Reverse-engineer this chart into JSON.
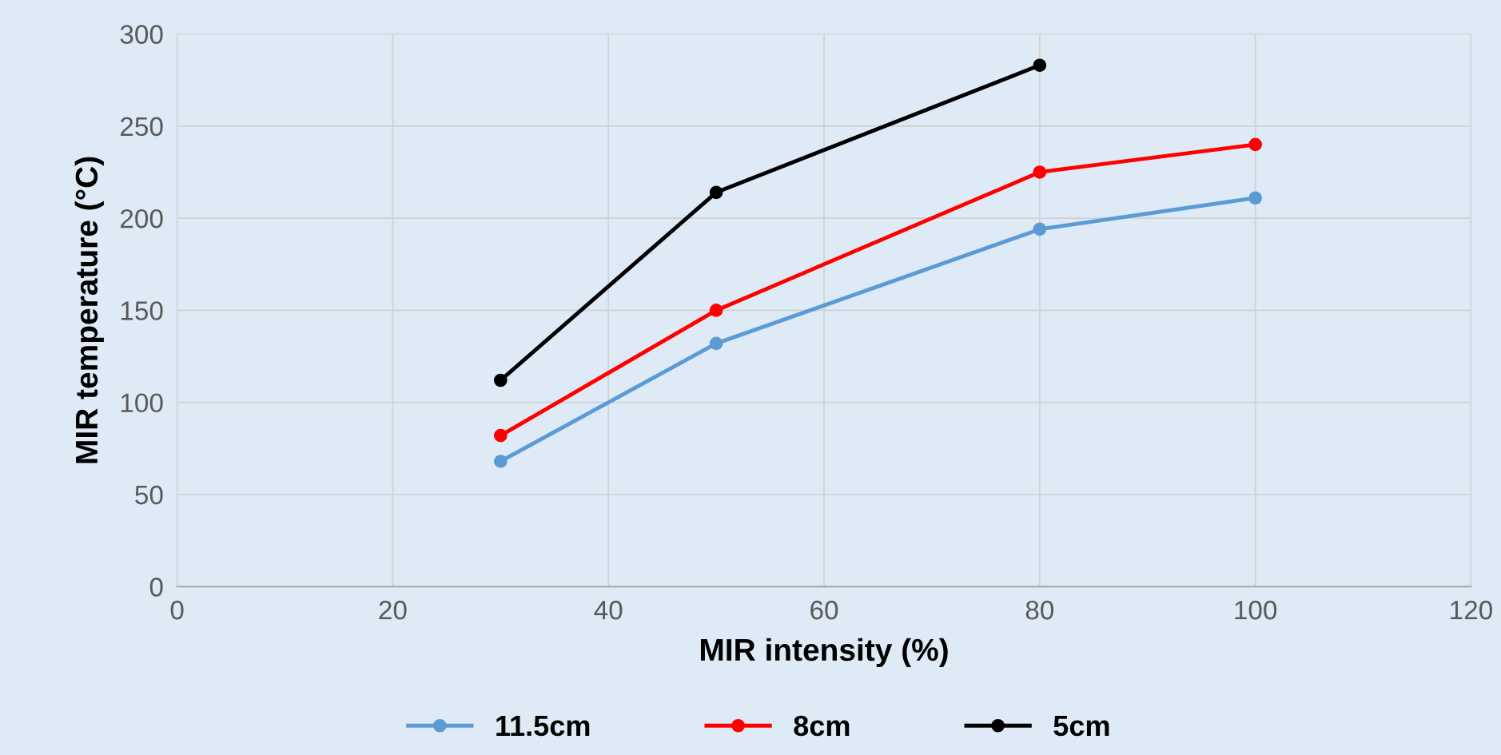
{
  "chart_data": {
    "type": "line",
    "xlabel": "MIR intensity (%)",
    "ylabel": "MIR temperature (°C)",
    "x": [
      30,
      50,
      80,
      100
    ],
    "series": [
      {
        "name": "11.5cm",
        "color": "#5b9bd5",
        "values": [
          68,
          132,
          194,
          211
        ]
      },
      {
        "name": "8cm",
        "color": "#ff0000",
        "values": [
          82,
          150,
          225,
          240
        ]
      },
      {
        "name": "5cm",
        "color": "#000000",
        "values": [
          112,
          214,
          283,
          null
        ]
      }
    ],
    "xlim": [
      0,
      120
    ],
    "xticks": [
      0,
      20,
      40,
      60,
      80,
      100,
      120
    ],
    "ylim": [
      0,
      300
    ],
    "yticks": [
      0,
      50,
      100,
      150,
      200,
      250,
      300
    ],
    "grid": true,
    "legend": "bottom",
    "marker": "circle",
    "line_style": "solid"
  }
}
